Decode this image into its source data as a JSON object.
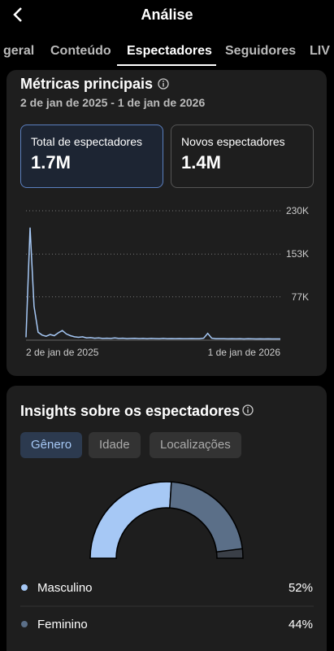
{
  "header": {
    "title": "Análise"
  },
  "tabs": [
    "geral",
    "Conteúdo",
    "Espectadores",
    "Seguidores",
    "LIV"
  ],
  "metrics": {
    "title": "Métricas principais",
    "date_range": "2 de jan de 2025 - 1 de jan de 2026",
    "cards": [
      {
        "label": "Total de espectadores",
        "value": "1.7M"
      },
      {
        "label": "Novos espectadores",
        "value": "1.4M"
      }
    ]
  },
  "insights": {
    "title": "Insights sobre os espectadores",
    "chips": [
      "Gênero",
      "Idade",
      "Localizações"
    ]
  },
  "chart_data": [
    {
      "type": "line",
      "x_labels": [
        "2 de jan de 2025",
        "1 de jan de 2026"
      ],
      "ylim": [
        0,
        230000
      ],
      "yticks": [
        {
          "value": 77000,
          "label": "77K"
        },
        {
          "value": 153000,
          "label": "153K"
        },
        {
          "value": 230000,
          "label": "230K"
        }
      ],
      "color": "#a6c8f5",
      "values": [
        5000,
        200000,
        60000,
        14000,
        9000,
        7000,
        10000,
        8000,
        13000,
        17000,
        11000,
        8000,
        6000,
        5000,
        6000,
        4000,
        4500,
        3500,
        4000,
        3000,
        3500,
        3000,
        4000,
        3000,
        3500,
        2800,
        3000,
        3200,
        2800,
        3000,
        2600,
        3000,
        2800,
        2600,
        3000,
        2500,
        2700,
        2500,
        2800,
        2600,
        2500,
        2700,
        2400,
        2600,
        3500,
        12000,
        3500,
        2500,
        2400,
        2600,
        2300,
        2500,
        2300,
        2400,
        2200,
        2400,
        2300,
        2200,
        2300,
        2200,
        2300,
        2200,
        2200,
        2100
      ]
    },
    {
      "type": "donut",
      "categories": [
        "Masculino",
        "Feminino"
      ],
      "values": [
        52,
        44
      ],
      "value_labels": [
        "52%",
        "44%"
      ],
      "colors": [
        "#a6c8f5",
        "#5b6f88"
      ]
    }
  ]
}
